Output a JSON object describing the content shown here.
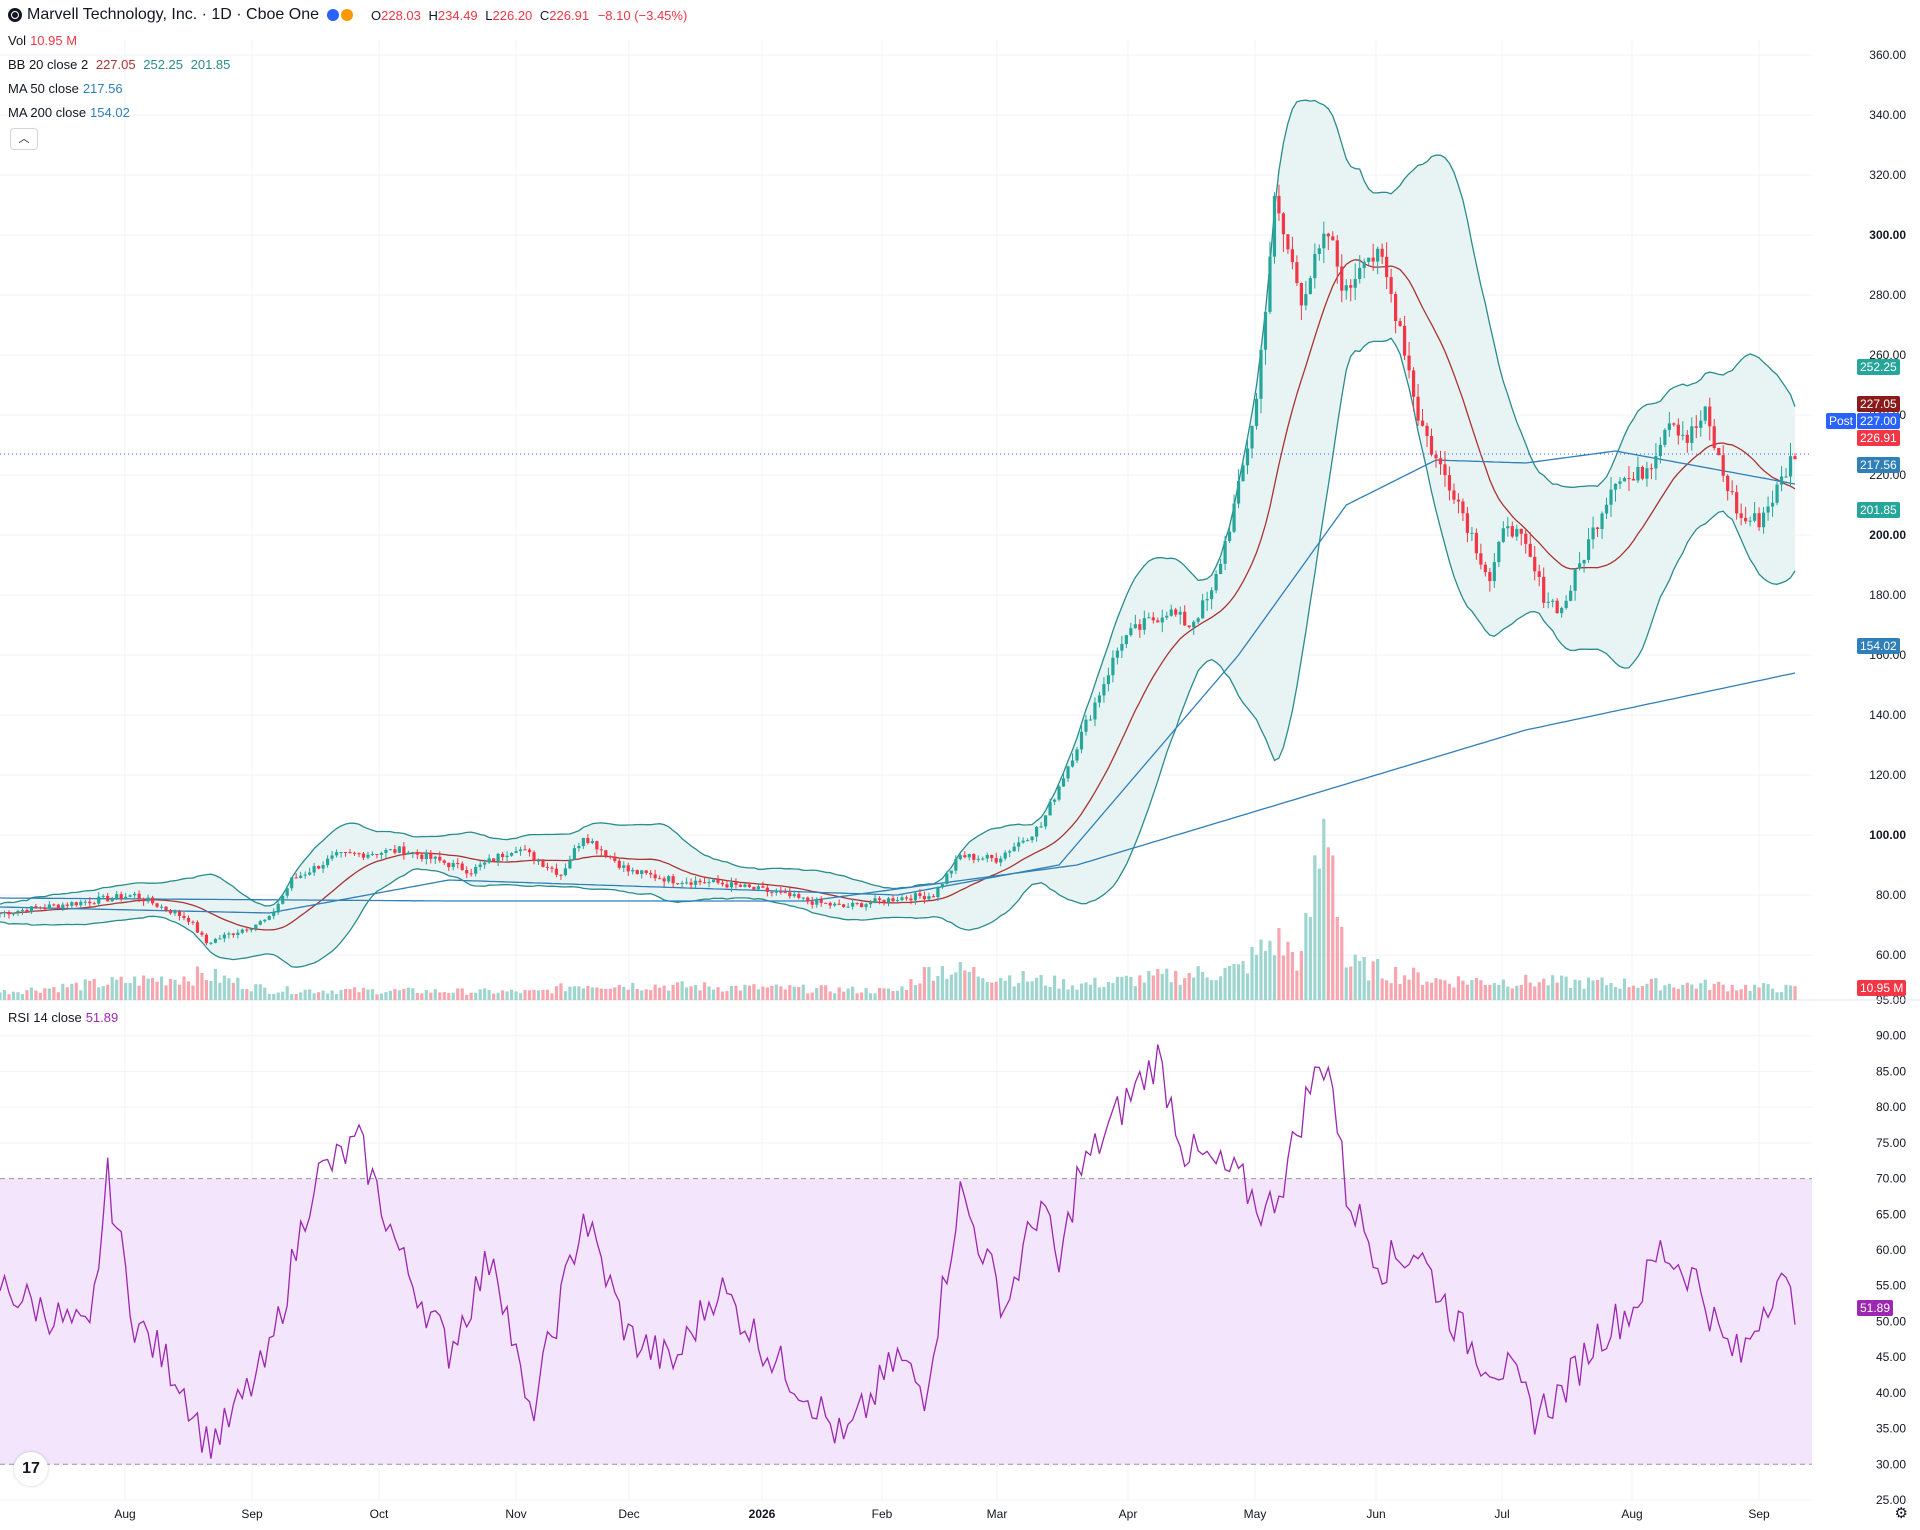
{
  "header": {
    "title": "Marvell Technology, Inc. · 1D · Cboe One",
    "open_label": "O",
    "open": "228.03",
    "high_label": "H",
    "high": "234.49",
    "low_label": "L",
    "low": "226.20",
    "close_label": "C",
    "close": "226.91",
    "change": "−8.10 (−3.45%)"
  },
  "legend": {
    "vol_label": "Vol",
    "vol_value": "10.95 M",
    "bb_label": "BB 20 close 2",
    "bb_mid": "227.05",
    "bb_upper": "252.25",
    "bb_lower": "201.85",
    "ma50_label": "MA 50 close",
    "ma50_value": "217.56",
    "ma200_label": "MA 200 close",
    "ma200_value": "154.02",
    "rsi_label": "RSI 14 close",
    "rsi_value": "51.89"
  },
  "price_tags": {
    "bb_upper": "252.25",
    "bb_mid": "227.05",
    "post_label": "Post",
    "post": "227.00",
    "last": "226.91",
    "ma50": "217.56",
    "bb_lower": "201.85",
    "ma200": "154.02",
    "volume": "10.95 M",
    "rsi": "51.89"
  },
  "colors": {
    "up": "#26a69a",
    "down": "#f23645",
    "bb": "#2a8c8c",
    "bb_fill": "#e7f4f3",
    "ma50": "#2f7fb8",
    "ma200": "#2f7fb8",
    "ma20": "#a33",
    "rsi": "#9c27b0",
    "rsi_band": "#f3e5fc"
  },
  "icons": {
    "logo": "tradingview-icon",
    "settings": "gear-icon",
    "collapse": "chevron-up-icon"
  },
  "chart_data": {
    "type": "candlestick",
    "x_axis_labels": [
      "Aug",
      "Sep",
      "Oct",
      "Nov",
      "Dec",
      "2026",
      "Feb",
      "Mar",
      "Apr",
      "May",
      "Jun",
      "Jul",
      "Aug",
      "Sep"
    ],
    "price_axis": {
      "ticks": [
        "60.00",
        "80.00",
        "100.00",
        "120.00",
        "140.00",
        "160.00",
        "180.00",
        "200.00",
        "220.00",
        "240.00",
        "260.00",
        "280.00",
        "300.00",
        "320.00",
        "340.00",
        "360.00"
      ],
      "range": [
        45,
        365
      ]
    },
    "volume_axis": {
      "ticks": [
        "40.00"
      ]
    },
    "rsi_axis": {
      "ticks": [
        "25.00",
        "30.00",
        "35.00",
        "40.00",
        "45.00",
        "50.00",
        "55.00",
        "60.00",
        "65.00",
        "70.00",
        "75.00",
        "80.00",
        "85.00",
        "90.00",
        "95.00"
      ],
      "range": [
        25,
        95
      ],
      "overbought": 70,
      "oversold": 30
    },
    "price_keypoints": [
      [
        0,
        74
      ],
      [
        20,
        78
      ],
      [
        30,
        80
      ],
      [
        42,
        72
      ],
      [
        46,
        64
      ],
      [
        60,
        72
      ],
      [
        65,
        85
      ],
      [
        75,
        93
      ],
      [
        90,
        95
      ],
      [
        105,
        88
      ],
      [
        115,
        96
      ],
      [
        125,
        87
      ],
      [
        130,
        100
      ],
      [
        140,
        88
      ],
      [
        150,
        85
      ],
      [
        160,
        84
      ],
      [
        172,
        81
      ],
      [
        180,
        78
      ],
      [
        188,
        76
      ],
      [
        200,
        79
      ],
      [
        208,
        80
      ],
      [
        214,
        93
      ],
      [
        222,
        92
      ],
      [
        232,
        103
      ],
      [
        240,
        130
      ],
      [
        250,
        165
      ],
      [
        260,
        175
      ],
      [
        265,
        170
      ],
      [
        270,
        180
      ],
      [
        276,
        215
      ],
      [
        280,
        245
      ],
      [
        284,
        310
      ],
      [
        290,
        280
      ],
      [
        296,
        300
      ],
      [
        300,
        280
      ],
      [
        304,
        295
      ],
      [
        308,
        290
      ],
      [
        312,
        270
      ],
      [
        316,
        240
      ],
      [
        320,
        225
      ],
      [
        324,
        215
      ],
      [
        328,
        200
      ],
      [
        332,
        185
      ],
      [
        336,
        205
      ],
      [
        340,
        195
      ],
      [
        344,
        180
      ],
      [
        348,
        175
      ],
      [
        352,
        190
      ],
      [
        356,
        205
      ],
      [
        360,
        220
      ],
      [
        364,
        218
      ],
      [
        368,
        225
      ],
      [
        372,
        240
      ],
      [
        376,
        232
      ],
      [
        380,
        240
      ],
      [
        384,
        220
      ],
      [
        388,
        205
      ],
      [
        392,
        205
      ],
      [
        396,
        215
      ],
      [
        400,
        228
      ]
    ],
    "volume_keypoints": [
      [
        0,
        8
      ],
      [
        46,
        25
      ],
      [
        60,
        10
      ],
      [
        120,
        8
      ],
      [
        130,
        16
      ],
      [
        200,
        9
      ],
      [
        208,
        32
      ],
      [
        240,
        15
      ],
      [
        276,
        30
      ],
      [
        284,
        60
      ],
      [
        290,
        40
      ],
      [
        296,
        190
      ],
      [
        300,
        35
      ],
      [
        320,
        20
      ],
      [
        380,
        15
      ],
      [
        400,
        11
      ]
    ],
    "rsi_keypoints": [
      [
        0,
        55
      ],
      [
        20,
        48
      ],
      [
        24,
        70
      ],
      [
        30,
        50
      ],
      [
        40,
        42
      ],
      [
        46,
        33
      ],
      [
        50,
        35
      ],
      [
        60,
        45
      ],
      [
        70,
        70
      ],
      [
        80,
        75
      ],
      [
        90,
        58
      ],
      [
        100,
        46
      ],
      [
        110,
        60
      ],
      [
        118,
        36
      ],
      [
        130,
        65
      ],
      [
        140,
        48
      ],
      [
        150,
        44
      ],
      [
        160,
        55
      ],
      [
        172,
        45
      ],
      [
        180,
        40
      ],
      [
        188,
        33
      ],
      [
        200,
        45
      ],
      [
        206,
        40
      ],
      [
        214,
        68
      ],
      [
        224,
        52
      ],
      [
        232,
        67
      ],
      [
        236,
        57
      ],
      [
        240,
        70
      ],
      [
        250,
        80
      ],
      [
        258,
        87
      ],
      [
        264,
        74
      ],
      [
        270,
        72
      ],
      [
        276,
        70
      ],
      [
        282,
        65
      ],
      [
        286,
        70
      ],
      [
        292,
        83
      ],
      [
        296,
        87
      ],
      [
        300,
        68
      ],
      [
        308,
        58
      ],
      [
        316,
        60
      ],
      [
        324,
        50
      ],
      [
        330,
        45
      ],
      [
        336,
        43
      ],
      [
        342,
        37
      ],
      [
        348,
        40
      ],
      [
        356,
        48
      ],
      [
        364,
        52
      ],
      [
        370,
        60
      ],
      [
        378,
        56
      ],
      [
        384,
        47
      ],
      [
        388,
        45
      ],
      [
        392,
        51
      ],
      [
        396,
        56
      ],
      [
        400,
        52
      ]
    ],
    "ma200_keypoints": [
      [
        0,
        79
      ],
      [
        100,
        78
      ],
      [
        180,
        78
      ],
      [
        240,
        90
      ],
      [
        300,
        117
      ],
      [
        340,
        135
      ],
      [
        400,
        154
      ]
    ],
    "ma50_keypoints": [
      [
        0,
        76
      ],
      [
        60,
        74
      ],
      [
        100,
        85
      ],
      [
        200,
        80
      ],
      [
        236,
        90
      ],
      [
        276,
        160
      ],
      [
        300,
        210
      ],
      [
        320,
        225
      ],
      [
        340,
        224
      ],
      [
        360,
        228
      ],
      [
        400,
        217
      ]
    ]
  }
}
